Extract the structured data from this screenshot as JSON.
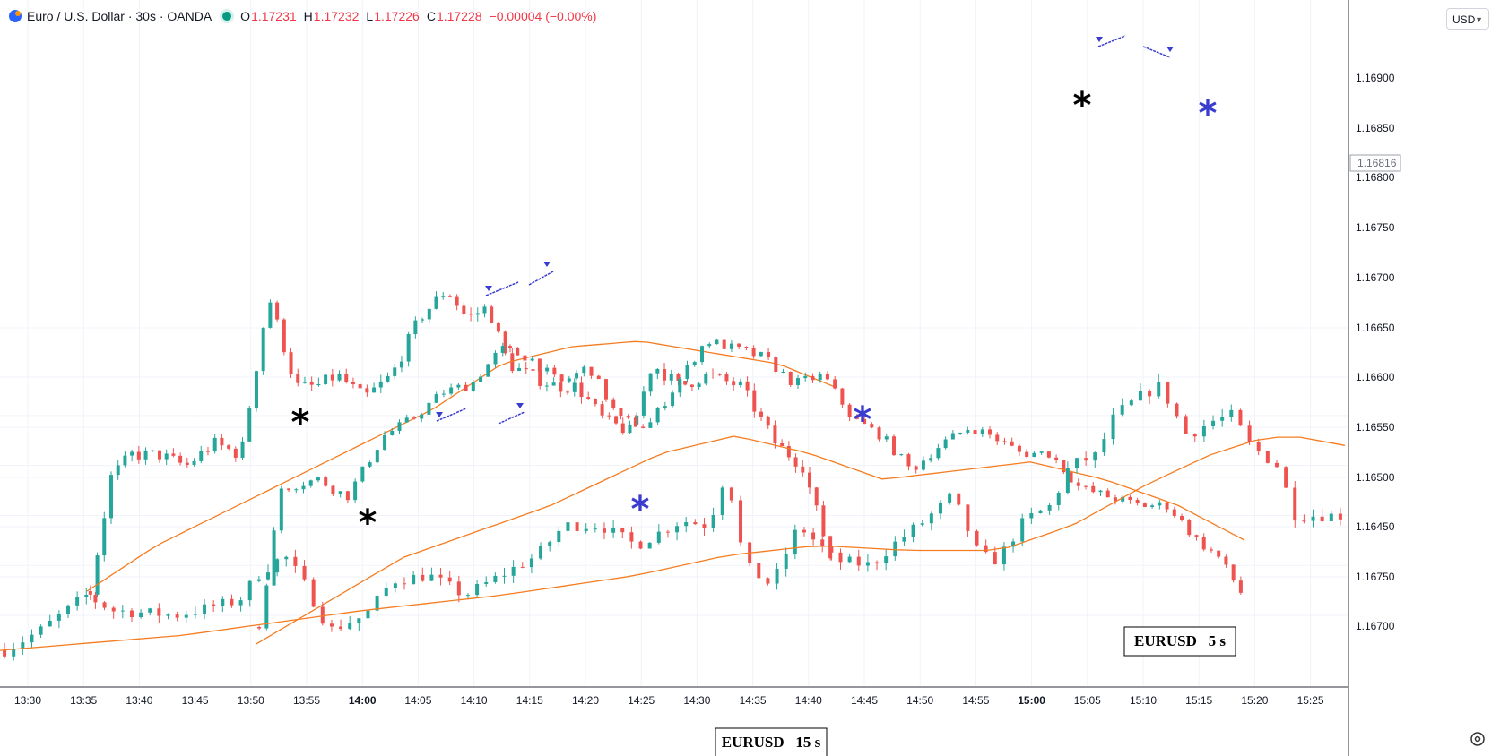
{
  "header": {
    "symbol_title": "Euro / U.S. Dollar · 30s · OANDA",
    "o_label": "O",
    "o_value": "1.17231",
    "h_label": "H",
    "h_value": "1.17232",
    "l_label": "L",
    "l_value": "1.17226",
    "c_label": "C",
    "c_value": "1.17228",
    "change": "−0.00004 (−0.00%)"
  },
  "currency_selector": {
    "value": "USD"
  },
  "last_price_tag": "1.16816",
  "overlay_boxes": [
    {
      "text": "EURUSD   15 s"
    },
    {
      "text": "EURUSD   5 s"
    }
  ],
  "colors": {
    "up": "#26a69a",
    "down": "#ef5350",
    "ma": "#f57c20",
    "marker_blue": "#3a3ccf",
    "marker_black": "#000000"
  },
  "chart_data": {
    "type": "candlestick",
    "title": "Euro / U.S. Dollar · 30s · OANDA",
    "ylim": [
      1.1664,
      1.1699
    ],
    "y_ticks": [
      1.167,
      1.1675,
      1.168,
      1.1685,
      1.169
    ],
    "y_tick_labels": [
      "1.16700",
      "1.16750",
      "1.16800",
      "1.16850",
      "1.16900"
    ],
    "x_tick_labels": [
      "13:30",
      "13:35",
      "13:40",
      "13:45",
      "13:50",
      "13:55",
      "14:00",
      "14:05",
      "14:10",
      "14:15",
      "14:20",
      "14:25",
      "14:30",
      "14:35",
      "14:40",
      "14:45",
      "14:50",
      "14:55",
      "15:00",
      "15:05",
      "15:10",
      "15:15",
      "15:20",
      "15:25"
    ],
    "right_axis_labels": [
      "1.16700",
      "1.16750",
      "1.16800",
      "1.16850",
      "1.16900",
      "1.16650",
      "1.16600",
      "1.16550",
      "1.16500",
      "1.16450",
      "1.16750",
      "1.16700"
    ],
    "series": [
      {
        "name": "EURUSD 30s",
        "t0": "13:30",
        "t1": "15:28",
        "price_path": [
          [
            0,
            1.16665
          ],
          [
            4,
            1.16685
          ],
          [
            9,
            1.1672
          ],
          [
            12,
            1.16705
          ],
          [
            19,
            1.167
          ],
          [
            26,
            1.16715
          ],
          [
            28,
            1.1674
          ],
          [
            31,
            1.1676
          ],
          [
            33,
            1.16735
          ],
          [
            36,
            1.16685
          ],
          [
            40,
            1.167
          ],
          [
            43,
            1.16735
          ],
          [
            47,
            1.1674
          ],
          [
            51,
            1.1672
          ],
          [
            55,
            1.1674
          ],
          [
            59,
            1.1676
          ],
          [
            62,
            1.1679
          ],
          [
            66,
            1.1679
          ],
          [
            70,
            1.1677
          ],
          [
            75,
            1.16795
          ],
          [
            78,
            1.1679
          ],
          [
            80,
            1.16845
          ],
          [
            82,
            1.1675
          ],
          [
            85,
            1.1673
          ],
          [
            88,
            1.1679
          ],
          [
            92,
            1.16755
          ],
          [
            96,
            1.1675
          ],
          [
            99,
            1.16775
          ],
          [
            102,
            1.16795
          ],
          [
            105,
            1.1682
          ],
          [
            108,
            1.1676
          ],
          [
            110,
            1.16755
          ],
          [
            113,
            1.16795
          ],
          [
            116,
            1.1681
          ],
          [
            118,
            1.1685
          ],
          [
            121,
            1.1686
          ],
          [
            123,
            1.169
          ],
          [
            126,
            1.1692
          ],
          [
            128,
            1.1693
          ],
          [
            131,
            1.1688
          ],
          [
            134,
            1.16895
          ],
          [
            136,
            1.169
          ],
          [
            138,
            1.1687
          ],
          [
            141,
            1.1685
          ],
          [
            143,
            1.168
          ],
          [
            148,
            1.168
          ]
        ],
        "ma_path": [
          [
            0,
            1.16665
          ],
          [
            20,
            1.1668
          ],
          [
            40,
            1.16705
          ],
          [
            55,
            1.1672
          ],
          [
            70,
            1.1674
          ],
          [
            80,
            1.1676
          ],
          [
            90,
            1.1677
          ],
          [
            100,
            1.16765
          ],
          [
            110,
            1.16765
          ],
          [
            118,
            1.1679
          ],
          [
            126,
            1.1683
          ],
          [
            133,
            1.1686
          ],
          [
            138,
            1.16875
          ],
          [
            142,
            1.1688
          ],
          [
            148,
            1.1687
          ]
        ]
      },
      {
        "name": "EURUSD 15s",
        "t0": "13:35",
        "t1": "14:42",
        "price_path": [
          [
            0,
            1.1658
          ],
          [
            3,
            1.1668
          ],
          [
            6,
            1.167
          ],
          [
            10,
            1.167
          ],
          [
            14,
            1.1669
          ],
          [
            18,
            1.1671
          ],
          [
            22,
            1.167
          ],
          [
            26,
            1.1684
          ],
          [
            30,
            1.1676
          ],
          [
            33,
            1.1676
          ],
          [
            36,
            1.1677
          ],
          [
            40,
            1.1675
          ],
          [
            44,
            1.1677
          ],
          [
            48,
            1.1682
          ],
          [
            52,
            1.16845
          ],
          [
            55,
            1.1682
          ],
          [
            58,
            1.1683
          ],
          [
            61,
            1.1678
          ],
          [
            64,
            1.1677
          ],
          [
            68,
            1.1676
          ],
          [
            71,
            1.1676
          ],
          [
            75,
            1.1673
          ],
          [
            79,
            1.1672
          ],
          [
            82,
            1.1678
          ],
          [
            86,
            1.1676
          ],
          [
            90,
            1.1677
          ],
          [
            95,
            1.1676
          ],
          [
            100,
            1.1671
          ],
          [
            104,
            1.1669
          ],
          [
            108,
            1.1661
          ]
        ],
        "ma_path": [
          [
            0,
            1.1658
          ],
          [
            10,
            1.1662
          ],
          [
            20,
            1.1665
          ],
          [
            30,
            1.1668
          ],
          [
            40,
            1.1671
          ],
          [
            50,
            1.1674
          ],
          [
            60,
            1.1678
          ],
          [
            70,
            1.16795
          ],
          [
            80,
            1.168
          ],
          [
            90,
            1.1679
          ],
          [
            100,
            1.1678
          ],
          [
            108,
            1.1676
          ]
        ]
      },
      {
        "name": "EURUSD 5s",
        "t0": "13:50",
        "t1": "15:19",
        "price_path": [
          [
            0,
            1.1642
          ],
          [
            3,
            1.1658
          ],
          [
            8,
            1.1659
          ],
          [
            12,
            1.1657
          ],
          [
            17,
            1.1664
          ],
          [
            21,
            1.1666
          ],
          [
            25,
            1.1669
          ],
          [
            29,
            1.167
          ],
          [
            33,
            1.1674
          ],
          [
            37,
            1.1673
          ],
          [
            41,
            1.167
          ],
          [
            45,
            1.1672
          ],
          [
            49,
            1.1666
          ],
          [
            53,
            1.1665
          ],
          [
            57,
            1.167
          ],
          [
            61,
            1.1675
          ],
          [
            65,
            1.1674
          ],
          [
            69,
            1.1673
          ],
          [
            73,
            1.167
          ],
          [
            77,
            1.1671
          ],
          [
            81,
            1.1666
          ],
          [
            85,
            1.1664
          ],
          [
            89,
            1.166
          ],
          [
            93,
            1.1663
          ],
          [
            97,
            1.1665
          ],
          [
            100,
            1.1664
          ],
          [
            104,
            1.1662
          ],
          [
            108,
            1.1662
          ],
          [
            112,
            1.1658
          ],
          [
            116,
            1.1657
          ],
          [
            120,
            1.1656
          ],
          [
            124,
            1.1656
          ],
          [
            128,
            1.1652
          ],
          [
            131,
            1.165
          ],
          [
            134,
            1.1646
          ]
        ],
        "ma_path": [
          [
            0,
            1.164
          ],
          [
            20,
            1.165
          ],
          [
            40,
            1.1656
          ],
          [
            55,
            1.1662
          ],
          [
            65,
            1.1664
          ],
          [
            75,
            1.1662
          ],
          [
            85,
            1.1659
          ],
          [
            95,
            1.166
          ],
          [
            105,
            1.1661
          ],
          [
            115,
            1.1659
          ],
          [
            125,
            1.1656
          ],
          [
            134,
            1.1652
          ]
        ]
      }
    ]
  }
}
